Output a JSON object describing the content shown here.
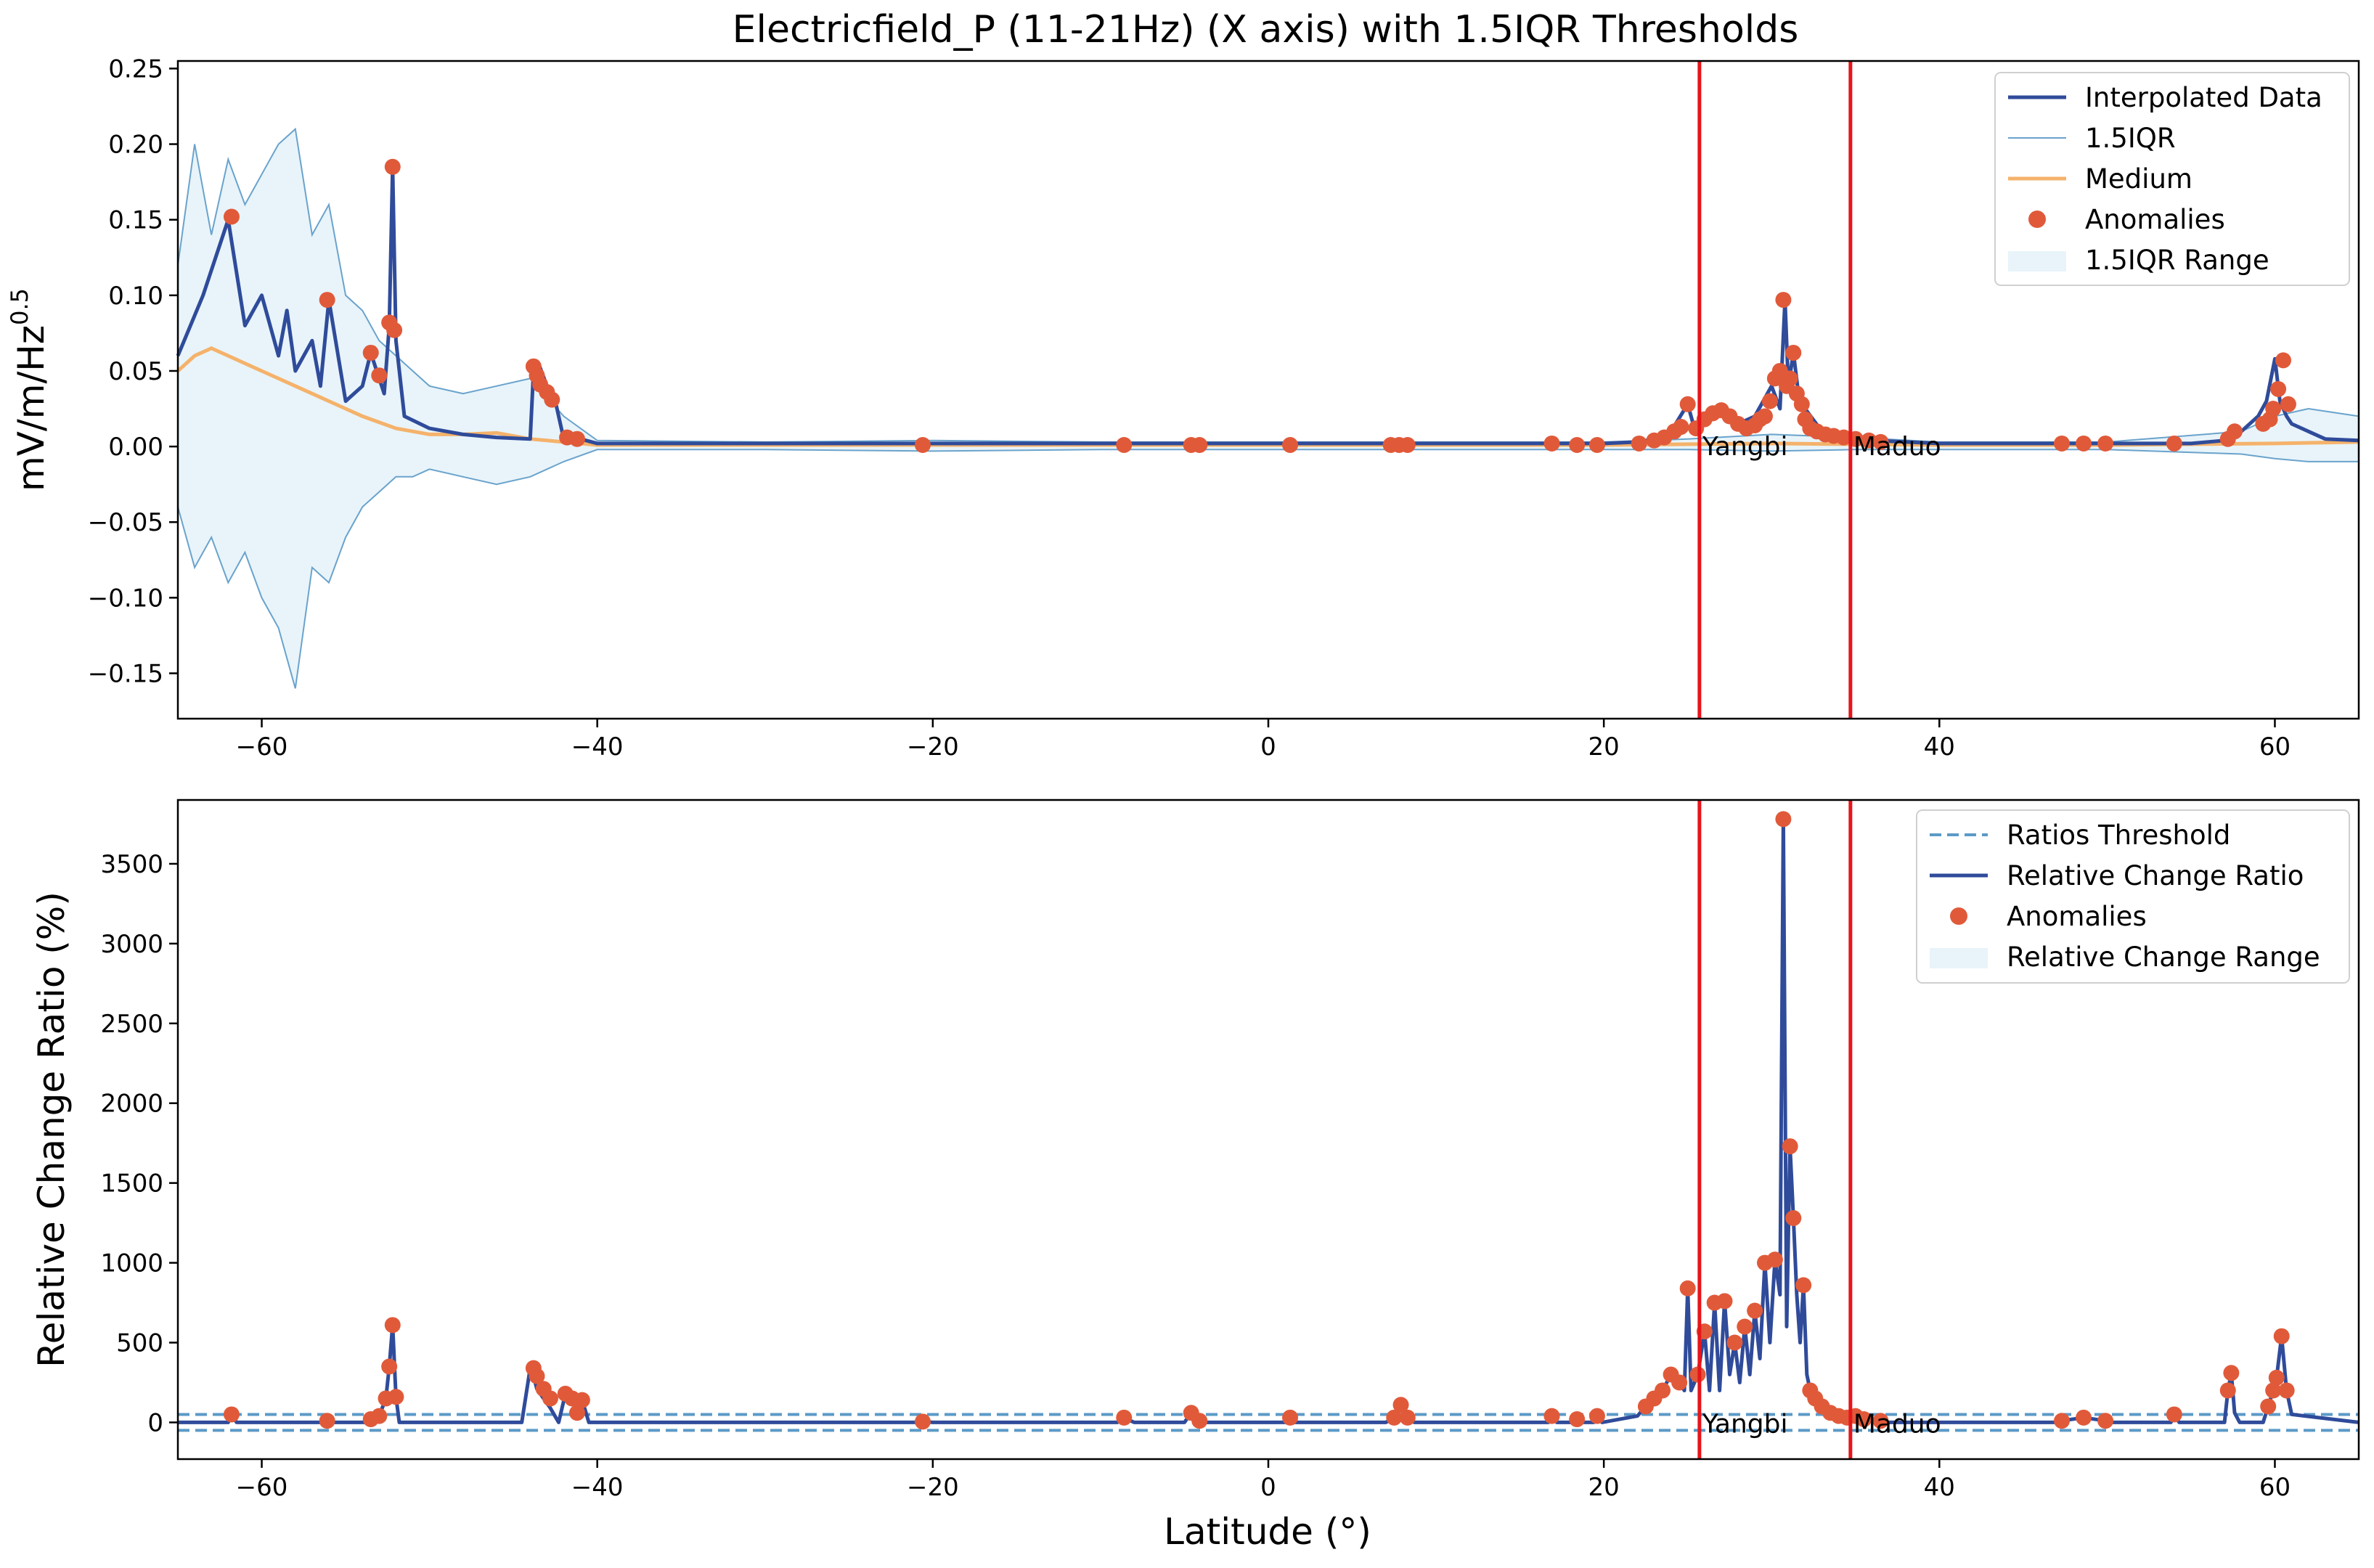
{
  "chart_data": [
    {
      "type": "line",
      "title": "Electricfield_P (11-21Hz) (X axis) with 1.5IQR Thresholds",
      "ylabel": "mV/m/Hz",
      "ylabel_sup": "0.5",
      "xlim": [
        -65,
        65
      ],
      "ylim": [
        -0.18,
        0.255
      ],
      "xticks": [
        -60,
        -40,
        -20,
        0,
        20,
        40,
        60
      ],
      "xtick_labels": [
        "−60",
        "−40",
        "−20",
        "0",
        "20",
        "40",
        "60"
      ],
      "yticks": [
        -0.15,
        -0.1,
        -0.05,
        0.0,
        0.05,
        0.1,
        0.15,
        0.2,
        0.25
      ],
      "ytick_labels": [
        "−0.15",
        "−0.10",
        "−0.05",
        "0.00",
        "0.05",
        "0.10",
        "0.15",
        "0.20",
        "0.25"
      ],
      "legend": {
        "position": "top-right",
        "entries": [
          "Interpolated Data",
          "1.5IQR",
          "Medium",
          "Anomalies",
          "1.5IQR Range"
        ]
      },
      "colors": {
        "data": "#2f4b9a",
        "iqr": "#6aa3cc",
        "medium": "#f5b26b",
        "anomaly": "#e05a3a",
        "range": "#e8f4fa",
        "marker_line": "#e8151b"
      },
      "series": [
        {
          "name": "Interpolated Data",
          "x": [
            -65,
            -63.5,
            -62,
            -61,
            -60,
            -59,
            -58.5,
            -58,
            -57,
            -56.5,
            -56,
            -55,
            -54,
            -53.5,
            -53,
            -52.7,
            -52.4,
            -52.2,
            -52,
            -51.5,
            -50,
            -48,
            -46,
            -44,
            -43.8,
            -43.5,
            -43,
            -42.5,
            -42,
            -41.5,
            -41,
            -40,
            -30,
            -20,
            -10,
            0,
            10,
            20,
            22,
            23,
            24,
            25,
            25.5,
            26,
            27,
            28,
            29,
            29.5,
            30,
            30.5,
            30.8,
            31,
            31.3,
            31.6,
            32,
            33,
            34,
            35,
            36,
            40,
            50,
            55,
            57,
            58,
            59,
            59.5,
            60,
            60.3,
            60.7,
            61,
            62,
            63,
            65
          ],
          "y": [
            0.06,
            0.1,
            0.15,
            0.08,
            0.1,
            0.06,
            0.09,
            0.05,
            0.07,
            0.04,
            0.097,
            0.03,
            0.04,
            0.062,
            0.045,
            0.035,
            0.08,
            0.185,
            0.07,
            0.02,
            0.012,
            0.008,
            0.006,
            0.005,
            0.05,
            0.055,
            0.04,
            0.03,
            0.005,
            0.007,
            0.005,
            0.002,
            0.002,
            0.002,
            0.002,
            0.002,
            0.002,
            0.002,
            0.003,
            0.005,
            0.01,
            0.028,
            0.008,
            0.02,
            0.025,
            0.015,
            0.02,
            0.03,
            0.04,
            0.025,
            0.097,
            0.04,
            0.062,
            0.035,
            0.025,
            0.01,
            0.006,
            0.005,
            0.004,
            0.002,
            0.002,
            0.002,
            0.004,
            0.01,
            0.02,
            0.03,
            0.058,
            0.03,
            0.02,
            0.015,
            0.01,
            0.005,
            0.004
          ]
        },
        {
          "name": "1.5IQR",
          "x": [
            -65,
            -64,
            -63,
            -62,
            -61,
            -60,
            -59,
            -58,
            -57,
            -56,
            -55,
            -54,
            -53,
            -52,
            -51,
            -50,
            -48,
            -46,
            -44,
            -42,
            -40,
            -30,
            -20,
            -10,
            0,
            10,
            20,
            25,
            30,
            35,
            40,
            50,
            58,
            60,
            62,
            65
          ],
          "upper": [
            0.12,
            0.2,
            0.14,
            0.19,
            0.16,
            0.18,
            0.2,
            0.21,
            0.14,
            0.16,
            0.1,
            0.09,
            0.07,
            0.06,
            0.05,
            0.04,
            0.035,
            0.04,
            0.045,
            0.02,
            0.004,
            0.003,
            0.004,
            0.003,
            0.003,
            0.003,
            0.003,
            0.005,
            0.008,
            0.006,
            0.003,
            0.003,
            0.01,
            0.02,
            0.025,
            0.02
          ],
          "lower": [
            -0.04,
            -0.08,
            -0.06,
            -0.09,
            -0.07,
            -0.1,
            -0.12,
            -0.16,
            -0.08,
            -0.09,
            -0.06,
            -0.04,
            -0.03,
            -0.02,
            -0.02,
            -0.015,
            -0.02,
            -0.025,
            -0.02,
            -0.01,
            -0.002,
            -0.002,
            -0.003,
            -0.002,
            -0.002,
            -0.002,
            -0.002,
            -0.002,
            -0.003,
            -0.002,
            -0.002,
            -0.002,
            -0.005,
            -0.008,
            -0.01,
            -0.01
          ]
        },
        {
          "name": "Medium",
          "x": [
            -65,
            -64,
            -63,
            -62,
            -61,
            -60,
            -59,
            -58,
            -57,
            -56,
            -55,
            -54,
            -52,
            -50,
            -48,
            -46,
            -44,
            -42,
            -40,
            -30,
            -20,
            -10,
            0,
            10,
            20,
            30,
            40,
            50,
            60,
            65
          ],
          "y": [
            0.05,
            0.06,
            0.065,
            0.06,
            0.055,
            0.05,
            0.045,
            0.04,
            0.035,
            0.03,
            0.025,
            0.02,
            0.012,
            0.008,
            0.008,
            0.009,
            0.005,
            0.003,
            0.001,
            0.001,
            0.001,
            0.001,
            0.001,
            0.001,
            0.001,
            0.002,
            0.001,
            0.001,
            0.002,
            0.003
          ]
        }
      ],
      "anomalies": {
        "x": [
          -61.8,
          -56.1,
          -53.5,
          -53.0,
          -52.4,
          -52.2,
          -52.1,
          -43.8,
          -43.6,
          -43.4,
          -43.0,
          -42.7,
          -41.8,
          -41.2,
          -20.6,
          -8.6,
          -4.6,
          -4.1,
          1.3,
          7.3,
          7.8,
          8.3,
          16.9,
          18.4,
          19.6,
          22.1,
          23.0,
          23.6,
          24.2,
          24.6,
          25.0,
          25.5,
          26.0,
          26.5,
          27.0,
          27.5,
          28.0,
          28.5,
          29.0,
          29.3,
          29.6,
          29.9,
          30.2,
          30.5,
          30.7,
          30.9,
          31.1,
          31.3,
          31.5,
          31.8,
          32.0,
          32.3,
          32.7,
          33.2,
          33.7,
          34.3,
          35.0,
          35.8,
          36.5,
          47.3,
          48.6,
          49.9,
          54.0,
          57.2,
          57.6,
          59.3,
          59.7,
          59.9,
          60.2,
          60.5,
          60.8
        ],
        "y": [
          0.152,
          0.097,
          0.062,
          0.047,
          0.082,
          0.185,
          0.077,
          0.053,
          0.047,
          0.041,
          0.036,
          0.031,
          0.006,
          0.005,
          0.001,
          0.001,
          0.001,
          0.001,
          0.001,
          0.001,
          0.001,
          0.001,
          0.002,
          0.001,
          0.001,
          0.002,
          0.004,
          0.006,
          0.01,
          0.013,
          0.028,
          0.012,
          0.018,
          0.022,
          0.024,
          0.02,
          0.015,
          0.012,
          0.014,
          0.018,
          0.02,
          0.03,
          0.045,
          0.05,
          0.097,
          0.04,
          0.045,
          0.062,
          0.035,
          0.028,
          0.018,
          0.012,
          0.01,
          0.008,
          0.007,
          0.006,
          0.005,
          0.004,
          0.003,
          0.002,
          0.002,
          0.002,
          0.002,
          0.005,
          0.01,
          0.015,
          0.018,
          0.025,
          0.038,
          0.057,
          0.028
        ]
      },
      "vlines": [
        {
          "x": 25.7,
          "label": "Yangbi"
        },
        {
          "x": 34.7,
          "label": "Maduo"
        }
      ]
    },
    {
      "type": "line",
      "title": "",
      "xlabel": "Latitude (°)",
      "ylabel": "Relative Change Ratio (%)",
      "xlim": [
        -65,
        65
      ],
      "ylim": [
        -230,
        3900
      ],
      "xticks": [
        -60,
        -40,
        -20,
        0,
        20,
        40,
        60
      ],
      "xtick_labels": [
        "−60",
        "−40",
        "−20",
        "0",
        "20",
        "40",
        "60"
      ],
      "yticks": [
        0,
        500,
        1000,
        1500,
        2000,
        2500,
        3000,
        3500
      ],
      "ytick_labels": [
        "0",
        "500",
        "1000",
        "1500",
        "2000",
        "2500",
        "3000",
        "3500"
      ],
      "legend": {
        "position": "top-right",
        "entries": [
          "Ratios Threshold",
          "Relative Change Ratio",
          "Anomalies",
          "Relative Change Range"
        ]
      },
      "thresholds": [
        50,
        -50
      ],
      "series": [
        {
          "name": "Relative Change Ratio",
          "x": [
            -65,
            -62,
            -61.8,
            -61.5,
            -56.5,
            -56.1,
            -55.8,
            -53.8,
            -53.5,
            -53.0,
            -52.6,
            -52.4,
            -52.2,
            -52.0,
            -51.8,
            -44.5,
            -44.0,
            -43.8,
            -43.6,
            -43.2,
            -42.8,
            -42.3,
            -41.9,
            -41.5,
            -41.2,
            -40.9,
            -40.5,
            -21,
            -20.6,
            -20,
            -9,
            -8.6,
            -8,
            -5,
            -4.6,
            -4.1,
            -3.7,
            1,
            1.3,
            1.6,
            7,
            7.5,
            7.9,
            8.3,
            8.7,
            16.7,
            16.9,
            17.2,
            18.2,
            18.4,
            18.7,
            19.4,
            19.6,
            19.9,
            22,
            22.5,
            23,
            23.5,
            24,
            24.5,
            24.8,
            25.0,
            25.2,
            25.6,
            26.0,
            26.3,
            26.6,
            26.9,
            27.2,
            27.5,
            27.8,
            28.1,
            28.4,
            28.7,
            29.0,
            29.3,
            29.6,
            29.9,
            30.2,
            30.5,
            30.7,
            30.9,
            31.1,
            31.3,
            31.5,
            31.7,
            31.9,
            32.1,
            32.3,
            32.6,
            33.0,
            33.5,
            34.0,
            34.5,
            35.0,
            35.5,
            36.5,
            37,
            47,
            47.3,
            48.6,
            49.9,
            50.2,
            53.8,
            54.0,
            54.3,
            57.0,
            57.2,
            57.4,
            57.6,
            57.9,
            59.3,
            59.6,
            59.9,
            60.1,
            60.4,
            60.7,
            61.0,
            65
          ],
          "y": [
            0,
            0,
            50,
            0,
            0,
            10,
            0,
            0,
            20,
            40,
            150,
            350,
            610,
            160,
            0,
            0,
            340,
            290,
            210,
            150,
            90,
            0,
            180,
            150,
            60,
            140,
            0,
            0,
            5,
            0,
            0,
            30,
            0,
            0,
            60,
            10,
            0,
            0,
            30,
            0,
            0,
            30,
            110,
            30,
            0,
            0,
            40,
            0,
            0,
            20,
            0,
            0,
            40,
            0,
            40,
            100,
            150,
            200,
            300,
            250,
            200,
            840,
            200,
            300,
            570,
            200,
            750,
            200,
            760,
            300,
            500,
            250,
            600,
            300,
            700,
            400,
            1000,
            500,
            1020,
            800,
            3780,
            600,
            1730,
            1280,
            800,
            500,
            860,
            300,
            200,
            150,
            100,
            60,
            40,
            30,
            40,
            20,
            10,
            0,
            0,
            10,
            30,
            10,
            0,
            0,
            50,
            0,
            0,
            200,
            310,
            60,
            0,
            0,
            100,
            200,
            280,
            540,
            200,
            50,
            0
          ]
        }
      ],
      "anomalies": {
        "x": [
          -61.8,
          -56.1,
          -53.5,
          -53.0,
          -52.6,
          -52.4,
          -52.2,
          -52.0,
          -43.8,
          -43.6,
          -43.2,
          -42.8,
          -41.9,
          -41.5,
          -41.2,
          -40.9,
          -20.6,
          -8.6,
          -4.6,
          -4.1,
          1.3,
          7.5,
          7.9,
          8.3,
          16.9,
          18.4,
          19.6,
          22.5,
          23.0,
          23.5,
          24.0,
          24.5,
          25.0,
          25.6,
          26.0,
          26.6,
          27.2,
          27.8,
          28.4,
          29.0,
          29.6,
          30.2,
          30.7,
          31.1,
          31.3,
          31.9,
          32.3,
          32.6,
          33.0,
          33.5,
          34.0,
          34.5,
          35.0,
          35.5,
          36.5,
          47.3,
          48.6,
          49.9,
          54.0,
          57.2,
          57.4,
          59.6,
          59.9,
          60.1,
          60.4,
          60.7
        ],
        "y": [
          50,
          10,
          20,
          40,
          150,
          350,
          610,
          160,
          340,
          290,
          210,
          150,
          180,
          150,
          60,
          140,
          5,
          30,
          60,
          10,
          30,
          30,
          110,
          30,
          40,
          20,
          40,
          100,
          150,
          200,
          300,
          250,
          840,
          300,
          570,
          750,
          760,
          500,
          600,
          700,
          1000,
          1020,
          3780,
          1730,
          1280,
          860,
          200,
          150,
          100,
          60,
          40,
          30,
          40,
          20,
          10,
          10,
          30,
          10,
          50,
          200,
          310,
          100,
          200,
          280,
          540,
          200
        ]
      },
      "vlines": [
        {
          "x": 25.7,
          "label": "Yangbi"
        },
        {
          "x": 34.7,
          "label": "Maduo"
        }
      ]
    }
  ]
}
